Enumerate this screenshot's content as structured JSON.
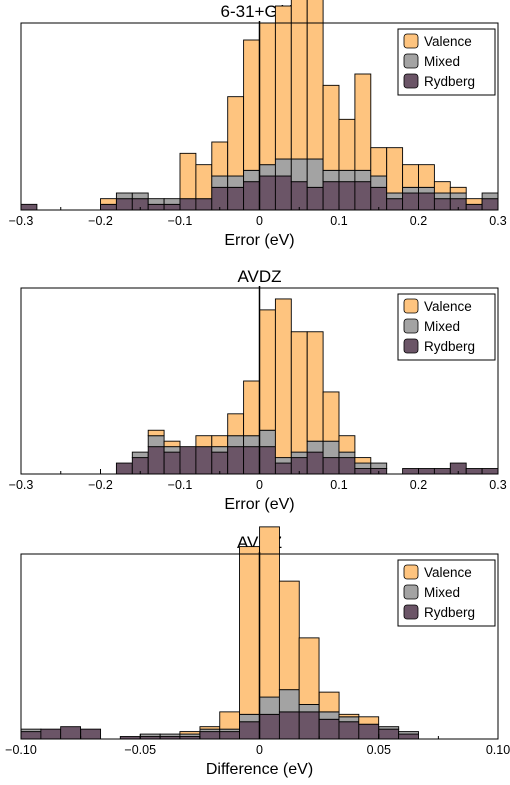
{
  "colors": {
    "valence": "#fec47f",
    "mixed": "#a3a3a3",
    "rydberg": "#6b5567"
  },
  "legend": [
    "Valence",
    "Mixed",
    "Rydberg"
  ],
  "chart_data": [
    {
      "type": "bar",
      "stacked": true,
      "title": "6-31+G(d)",
      "xlabel": "Error (eV)",
      "xlim": [
        -0.3,
        0.3
      ],
      "xticks": [
        "−0.3",
        "−0.2",
        "−0.1",
        "0",
        "0.1",
        "0.2",
        "0.3"
      ],
      "tick_values": [
        -0.3,
        -0.2,
        -0.1,
        0,
        0.1,
        0.2,
        0.3
      ],
      "bin_width": 0.02,
      "legend_position": "top-right",
      "x": [
        -0.29,
        -0.19,
        -0.17,
        -0.15,
        -0.13,
        -0.11,
        -0.09,
        -0.07,
        -0.05,
        -0.03,
        -0.01,
        0.01,
        0.03,
        0.05,
        0.07,
        0.09,
        0.11,
        0.13,
        0.15,
        0.17,
        0.19,
        0.21,
        0.23,
        0.25,
        0.27,
        0.29
      ],
      "series": [
        {
          "name": "Rydberg",
          "values": [
            1,
            1,
            2,
            2,
            1,
            1,
            2,
            2,
            4,
            4,
            5,
            6,
            6,
            5,
            4,
            5,
            5,
            5,
            4,
            2,
            3,
            3,
            2,
            2,
            1,
            2
          ]
        },
        {
          "name": "Mixed",
          "values": [
            0,
            0,
            1,
            1,
            1,
            1,
            0,
            0,
            2,
            2,
            2,
            2,
            3,
            4,
            5,
            2,
            2,
            2,
            2,
            1,
            1,
            1,
            1,
            1,
            0,
            1
          ]
        },
        {
          "name": "Valence",
          "values": [
            0,
            1,
            0,
            0,
            0,
            0,
            8,
            6,
            6,
            14,
            23,
            25,
            27,
            29,
            31,
            15,
            9,
            17,
            5,
            8,
            4,
            4,
            2,
            1,
            1,
            0
          ]
        }
      ]
    },
    {
      "type": "bar",
      "stacked": true,
      "title": "AVDZ",
      "xlabel": "Error (eV)",
      "xlim": [
        -0.3,
        0.3
      ],
      "xticks": [
        "−0.3",
        "−0.2",
        "−0.1",
        "0",
        "0.1",
        "0.2",
        "0.3"
      ],
      "tick_values": [
        -0.3,
        -0.2,
        -0.1,
        0,
        0.1,
        0.2,
        0.3
      ],
      "bin_width": 0.02,
      "legend_position": "top-right",
      "x": [
        -0.17,
        -0.15,
        -0.13,
        -0.11,
        -0.09,
        -0.07,
        -0.05,
        -0.03,
        -0.01,
        0.01,
        0.03,
        0.05,
        0.07,
        0.09,
        0.11,
        0.13,
        0.15,
        0.17,
        0.19,
        0.21,
        0.23,
        0.25,
        0.27,
        0.29
      ],
      "series": [
        {
          "name": "Rydberg",
          "values": [
            2,
            3,
            5,
            4,
            5,
            5,
            4,
            5,
            5,
            5,
            2,
            3,
            4,
            3,
            3,
            1,
            1,
            0,
            1,
            1,
            1,
            2,
            1,
            1
          ]
        },
        {
          "name": "Mixed",
          "values": [
            0,
            1,
            2,
            1,
            0,
            0,
            1,
            2,
            2,
            3,
            1,
            1,
            2,
            3,
            1,
            1,
            1,
            0,
            0,
            0,
            0,
            0,
            0,
            0
          ]
        },
        {
          "name": "Valence",
          "values": [
            0,
            0,
            1,
            1,
            0,
            2,
            2,
            4,
            10,
            22,
            29,
            22,
            20,
            9,
            3,
            1,
            0,
            0,
            0,
            0,
            0,
            0,
            0,
            0
          ]
        }
      ]
    },
    {
      "type": "bar",
      "stacked": true,
      "title": "AVQZ",
      "xlabel": "Difference (eV)",
      "xlim": [
        -0.1,
        0.1
      ],
      "xticks": [
        "−0.10",
        "−0.05",
        "0",
        "0.05",
        "0.10"
      ],
      "tick_values": [
        -0.1,
        -0.05,
        0,
        0.05,
        0.1
      ],
      "bin_width": 0.008333,
      "legend_position": "top-right",
      "x": [
        -0.0958,
        -0.0875,
        -0.0792,
        -0.0708,
        -0.0542,
        -0.0458,
        -0.0375,
        -0.0292,
        -0.0208,
        -0.0125,
        -0.0042,
        0.0042,
        0.0125,
        0.0208,
        0.0292,
        0.0375,
        0.0458,
        0.0542,
        0.0625
      ],
      "series": [
        {
          "name": "Rydberg",
          "values": [
            3,
            4,
            5,
            4,
            1,
            1,
            1,
            1,
            3,
            3,
            7,
            10,
            11,
            11,
            8,
            7,
            6,
            4,
            2
          ]
        },
        {
          "name": "Mixed",
          "values": [
            1,
            0,
            0,
            0,
            0,
            1,
            1,
            1,
            1,
            1,
            3,
            7,
            9,
            3,
            3,
            2,
            0,
            1,
            1
          ]
        },
        {
          "name": "Valence",
          "values": [
            0,
            0,
            0,
            0,
            0,
            0,
            0,
            1,
            1,
            7,
            68,
            69,
            44,
            27,
            8,
            1,
            3,
            0,
            0
          ]
        }
      ]
    }
  ]
}
